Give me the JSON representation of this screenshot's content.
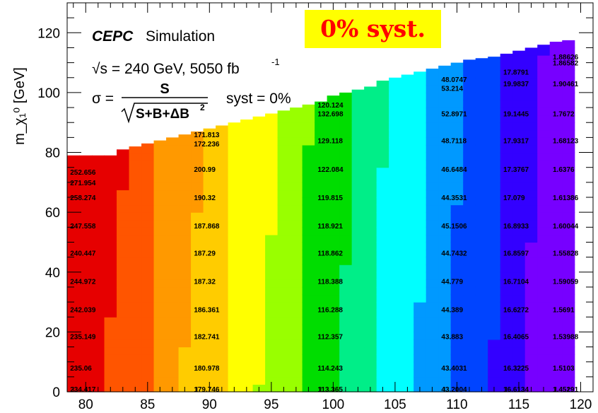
{
  "chart_data": {
    "type": "heatmap",
    "title": "",
    "xlabel": "",
    "ylabel": "m_χ₁⁰ [GeV]",
    "xlim": [
      78.5,
      121
    ],
    "ylim": [
      0,
      130
    ],
    "grid": false,
    "x_ticks": [
      80,
      85,
      90,
      95,
      100,
      105,
      110,
      115,
      120
    ],
    "y_ticks": [
      0,
      20,
      40,
      60,
      80,
      100,
      120
    ],
    "annotations": {
      "experiment": "CEPC",
      "sim": "Simulation",
      "energy": "√s = 240 GeV, 5050 fb",
      "lumi_exp": "-1",
      "sigma": "σ =",
      "numerator": "S",
      "denominator": "S+B+ΔB",
      "den_exp": "2",
      "syst_label": "syst = 0%",
      "stamp": "0% syst."
    },
    "colorscale": [
      "#e60000",
      "#ff5500",
      "#ff9900",
      "#ffcc00",
      "#ffff00",
      "#99ff00",
      "#00dd00",
      "#00ee88",
      "#00ffff",
      "#0099ff",
      "#0044ff",
      "#3300ff",
      "#7700ff"
    ],
    "value_range": [
      1.45,
      252.7
    ],
    "columns": [
      {
        "x": 80,
        "y_max": 79,
        "labels": [
          {
            "y": 1,
            "text": "234.417"
          },
          {
            "y": 8,
            "text": "235.06"
          },
          {
            "y": 18.5,
            "text": "235.149"
          },
          {
            "y": 27.5,
            "text": "242.039"
          },
          {
            "y": 37,
            "text": "244.972"
          },
          {
            "y": 46.5,
            "text": "240.447"
          },
          {
            "y": 55.5,
            "text": "247.558"
          },
          {
            "y": 65,
            "text": "258.274"
          },
          {
            "y": 70,
            "text": "271.954"
          },
          {
            "y": 73.5,
            "text": "252.656"
          }
        ]
      },
      {
        "x": 90,
        "y_max": 88,
        "labels": [
          {
            "y": 1,
            "text": "179.746"
          },
          {
            "y": 8,
            "text": "180.978"
          },
          {
            "y": 18.5,
            "text": "182.741"
          },
          {
            "y": 27.5,
            "text": "186.361"
          },
          {
            "y": 37,
            "text": "187.32"
          },
          {
            "y": 46.5,
            "text": "187.29"
          },
          {
            "y": 55.5,
            "text": "187.868"
          },
          {
            "y": 65,
            "text": "190.32"
          },
          {
            "y": 74.5,
            "text": "200.99"
          },
          {
            "y": 83,
            "text": "172.236"
          },
          {
            "y": 86,
            "text": "171.813"
          }
        ]
      },
      {
        "x": 100,
        "y_max": 99,
        "labels": [
          {
            "y": 1,
            "text": "113.365"
          },
          {
            "y": 8,
            "text": "114.243"
          },
          {
            "y": 18.5,
            "text": "112.357"
          },
          {
            "y": 27.5,
            "text": "116.288"
          },
          {
            "y": 37,
            "text": "118.388"
          },
          {
            "y": 46.5,
            "text": "118.862"
          },
          {
            "y": 55.5,
            "text": "118.921"
          },
          {
            "y": 65,
            "text": "119.815"
          },
          {
            "y": 74.5,
            "text": "122.084"
          },
          {
            "y": 84,
            "text": "129.118"
          },
          {
            "y": 93,
            "text": "132.698"
          },
          {
            "y": 96,
            "text": "120.124"
          }
        ]
      },
      {
        "x": 110,
        "y_max": 110,
        "labels": [
          {
            "y": 1,
            "text": "43.2004"
          },
          {
            "y": 8,
            "text": "43.4031"
          },
          {
            "y": 18.5,
            "text": "43.883"
          },
          {
            "y": 27.5,
            "text": "44.389"
          },
          {
            "y": 37,
            "text": "44.779"
          },
          {
            "y": 46.5,
            "text": "44.7432"
          },
          {
            "y": 55.5,
            "text": "45.1506"
          },
          {
            "y": 65,
            "text": "44.3531"
          },
          {
            "y": 74.5,
            "text": "46.6484"
          },
          {
            "y": 84,
            "text": "48.7118"
          },
          {
            "y": 93,
            "text": "52.8971"
          },
          {
            "y": 101.5,
            "text": "53.214"
          },
          {
            "y": 104.5,
            "text": "48.0747"
          }
        ]
      },
      {
        "x": 115,
        "y_max": 114,
        "labels": [
          {
            "y": 1,
            "text": "16.6134"
          },
          {
            "y": 8,
            "text": "16.3225"
          },
          {
            "y": 18.5,
            "text": "16.4065"
          },
          {
            "y": 27.5,
            "text": "16.6272"
          },
          {
            "y": 37,
            "text": "16.7104"
          },
          {
            "y": 46.5,
            "text": "16.8597"
          },
          {
            "y": 55.5,
            "text": "16.8933"
          },
          {
            "y": 65,
            "text": "17.079"
          },
          {
            "y": 74.5,
            "text": "17.3767"
          },
          {
            "y": 84,
            "text": "17.9317"
          },
          {
            "y": 93,
            "text": "19.1445"
          },
          {
            "y": 103,
            "text": "19.9837"
          },
          {
            "y": 107,
            "text": "17.8791"
          }
        ]
      },
      {
        "x": 119,
        "y_max": 117.5,
        "labels": [
          {
            "y": 1,
            "text": "1.45291"
          },
          {
            "y": 8,
            "text": "1.5103"
          },
          {
            "y": 18.5,
            "text": "1.53988"
          },
          {
            "y": 27.5,
            "text": "1.5691"
          },
          {
            "y": 37,
            "text": "1.59059"
          },
          {
            "y": 46.5,
            "text": "1.55828"
          },
          {
            "y": 55.5,
            "text": "1.60044"
          },
          {
            "y": 65,
            "text": "1.61386"
          },
          {
            "y": 74.5,
            "text": "1.6376"
          },
          {
            "y": 84,
            "text": "1.68123"
          },
          {
            "y": 93,
            "text": "1.7672"
          },
          {
            "y": 103,
            "text": "1.90461"
          },
          {
            "y": 110,
            "text": "1.86582"
          },
          {
            "y": 112,
            "text": "1.88626"
          }
        ]
      }
    ],
    "boundary": [
      [
        79,
        79
      ],
      [
        80,
        79
      ],
      [
        81,
        79
      ],
      [
        82,
        79
      ],
      [
        83,
        81
      ],
      [
        84,
        82
      ],
      [
        85,
        83
      ],
      [
        86,
        84
      ],
      [
        87,
        85
      ],
      [
        88,
        86
      ],
      [
        89,
        87
      ],
      [
        90,
        88
      ],
      [
        91,
        89
      ],
      [
        92,
        90
      ],
      [
        93,
        91
      ],
      [
        94,
        92
      ],
      [
        95,
        93
      ],
      [
        96,
        94
      ],
      [
        97,
        95
      ],
      [
        98,
        96
      ],
      [
        99,
        97
      ],
      [
        100,
        99
      ],
      [
        101,
        100
      ],
      [
        102,
        101
      ],
      [
        103,
        102
      ],
      [
        104,
        104
      ],
      [
        105,
        105
      ],
      [
        106,
        106
      ],
      [
        107,
        107
      ],
      [
        108,
        108
      ],
      [
        109,
        109
      ],
      [
        110,
        110
      ],
      [
        111,
        111
      ],
      [
        112,
        111.5
      ],
      [
        113,
        112
      ],
      [
        114,
        113
      ],
      [
        115,
        114
      ],
      [
        116,
        115
      ],
      [
        117,
        116
      ],
      [
        118,
        117
      ],
      [
        119,
        117.5
      ]
    ]
  }
}
